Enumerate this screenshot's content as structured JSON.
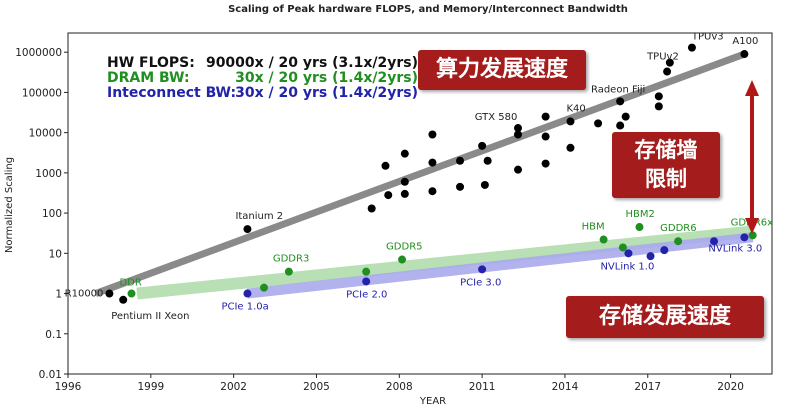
{
  "colors": {
    "flops": "#8a8a8a",
    "dram": "#b6deb0",
    "interconnect": "#aaaaee",
    "dram_text": "#1f8f1f",
    "interconnect_text": "#2222aa",
    "callout": "#a51c1c",
    "arrow": "#b01818"
  },
  "chart_data": {
    "type": "scatter",
    "title": "Scaling of Peak hardware FLOPS, and Memory/Interconnect Bandwidth",
    "xlabel": "YEAR",
    "ylabel": "Normalized Scaling",
    "xlim": [
      1996,
      2021.5
    ],
    "ylim": [
      0.01,
      3000000
    ],
    "y_scale": "log",
    "x_ticks": [
      1996,
      1999,
      2002,
      2005,
      2008,
      2011,
      2014,
      2017,
      2020
    ],
    "y_ticks": [
      0.01,
      0.1,
      1,
      10,
      100,
      1000,
      10000,
      100000,
      1000000
    ],
    "y_tick_labels": [
      "0.01",
      "0.1",
      "1",
      "10",
      "100",
      "1000",
      "10000",
      "100000",
      "1000000"
    ],
    "grid": false,
    "legend": [
      {
        "label": "HW FLOPS:",
        "value": "90000x / 20 yrs (3.1x/2yrs)",
        "color": "#111111"
      },
      {
        "label": "DRAM BW:",
        "value": "30x / 20 yrs (1.4x/2yrs)",
        "color": "#1f8f1f"
      },
      {
        "label": "Inteconnect BW:",
        "value": "30x / 20 yrs (1.4x/2yrs)",
        "color": "#2222aa"
      }
    ],
    "series": [
      {
        "name": "HW FLOPS",
        "color": "#000000",
        "trend": {
          "x": [
            1997,
            2020.5
          ],
          "y": [
            1,
            900000
          ]
        },
        "points": [
          {
            "x": 1997.5,
            "y": 1,
            "label": "R10000"
          },
          {
            "x": 1998,
            "y": 0.7,
            "label": "Pentium II Xeon"
          },
          {
            "x": 2002.5,
            "y": 40,
            "label": "Itanium 2"
          },
          {
            "x": 2007,
            "y": 130
          },
          {
            "x": 2007.5,
            "y": 1500
          },
          {
            "x": 2007.6,
            "y": 280
          },
          {
            "x": 2008.2,
            "y": 3000
          },
          {
            "x": 2008.2,
            "y": 600
          },
          {
            "x": 2008.2,
            "y": 300
          },
          {
            "x": 2009.2,
            "y": 9000
          },
          {
            "x": 2009.2,
            "y": 1800
          },
          {
            "x": 2009.2,
            "y": 350
          },
          {
            "x": 2010.2,
            "y": 2000
          },
          {
            "x": 2010.2,
            "y": 450
          },
          {
            "x": 2011,
            "y": 4700
          },
          {
            "x": 2011.1,
            "y": 500
          },
          {
            "x": 2011.2,
            "y": 2000
          },
          {
            "x": 2012.3,
            "y": 13000,
            "label": "GTX 580"
          },
          {
            "x": 2012.3,
            "y": 9000
          },
          {
            "x": 2012.3,
            "y": 1200
          },
          {
            "x": 2013.3,
            "y": 25000
          },
          {
            "x": 2013.3,
            "y": 8000
          },
          {
            "x": 2013.3,
            "y": 1700
          },
          {
            "x": 2014.2,
            "y": 19000,
            "label": "K40"
          },
          {
            "x": 2014.2,
            "y": 4200
          },
          {
            "x": 2015.2,
            "y": 17000
          },
          {
            "x": 2016,
            "y": 60000,
            "label": "Radeon Fiji"
          },
          {
            "x": 2016,
            "y": 15000
          },
          {
            "x": 2016.2,
            "y": 25000
          },
          {
            "x": 2017.4,
            "y": 45000
          },
          {
            "x": 2017.4,
            "y": 80000
          },
          {
            "x": 2017.7,
            "y": 330000,
            "label": "TPUv2"
          },
          {
            "x": 2017.8,
            "y": 550000
          },
          {
            "x": 2018.6,
            "y": 1300000,
            "label": "TPUv3"
          },
          {
            "x": 2020.5,
            "y": 900000,
            "label": "A100"
          }
        ]
      },
      {
        "name": "DRAM BW",
        "color": "#1f8f1f",
        "trend": {
          "x": [
            1998.5,
            2020.8
          ],
          "y": [
            1,
            35
          ]
        },
        "points": [
          {
            "x": 1998.3,
            "y": 1,
            "label": "DDR"
          },
          {
            "x": 2003.1,
            "y": 1.4
          },
          {
            "x": 2004,
            "y": 3.5,
            "label": "GDDR3"
          },
          {
            "x": 2006.8,
            "y": 3.5
          },
          {
            "x": 2008.1,
            "y": 7,
            "label": "GDDR5"
          },
          {
            "x": 2015.4,
            "y": 22,
            "label": "HBM"
          },
          {
            "x": 2016.1,
            "y": 14
          },
          {
            "x": 2016.7,
            "y": 45,
            "label": "HBM2"
          },
          {
            "x": 2018.1,
            "y": 20,
            "label": "GDDR6"
          },
          {
            "x": 2020.8,
            "y": 28,
            "label": "GDDR6x"
          }
        ]
      },
      {
        "name": "Interconnect BW",
        "color": "#2222aa",
        "trend": {
          "x": [
            2002.5,
            2020.8
          ],
          "y": [
            1,
            25
          ]
        },
        "points": [
          {
            "x": 2002.5,
            "y": 1,
            "label": "PCIe 1.0a"
          },
          {
            "x": 2006.8,
            "y": 2,
            "label": "PCIe 2.0"
          },
          {
            "x": 2011,
            "y": 4,
            "label": "PCIe 3.0"
          },
          {
            "x": 2016.3,
            "y": 10,
            "label": "NVLink 1.0"
          },
          {
            "x": 2017.1,
            "y": 8.5
          },
          {
            "x": 2017.6,
            "y": 12
          },
          {
            "x": 2019.4,
            "y": 20
          },
          {
            "x": 2020.5,
            "y": 25,
            "label": "NVLink 3.0"
          }
        ]
      }
    ],
    "annotations": [
      {
        "text": "算力发展速度",
        "kind": "callout"
      },
      {
        "text": "存储墙\n限制",
        "kind": "callout"
      },
      {
        "text": "存储发展速度",
        "kind": "callout"
      }
    ]
  },
  "callouts": {
    "compute_speed": "算力发展速度",
    "memory_wall_line1": "存储墙",
    "memory_wall_line2": "限制",
    "storage_speed": "存储发展速度"
  }
}
